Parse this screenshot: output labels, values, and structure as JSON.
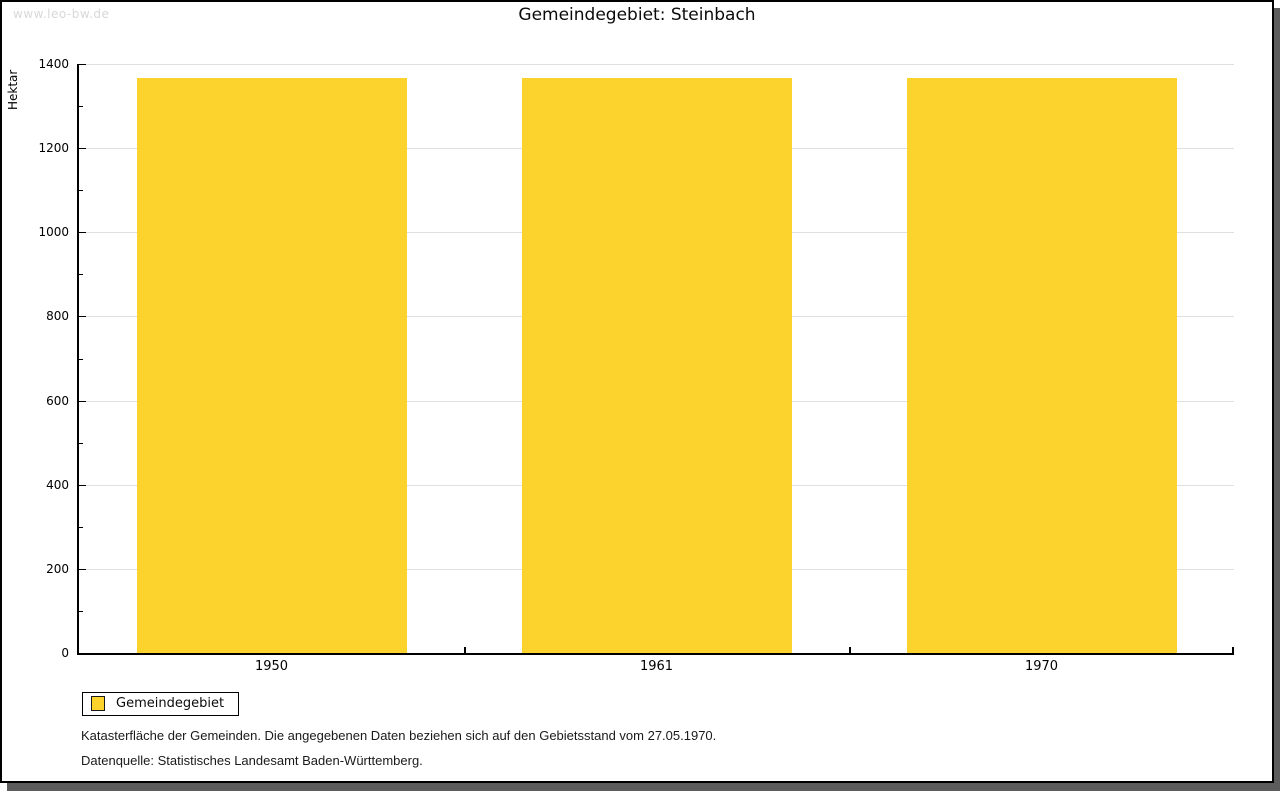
{
  "watermark": "www.leo-bw.de",
  "title": "Gemeindegebiet: Steinbach",
  "chart_data": {
    "type": "bar",
    "title": "Gemeindegebiet: Steinbach",
    "categories": [
      "1950",
      "1961",
      "1970"
    ],
    "series": [
      {
        "name": "Gemeindegebiet",
        "values": [
          1366,
          1366,
          1366
        ]
      }
    ],
    "xlabel": "",
    "ylabel": "Hektar",
    "ylim": [
      0,
      1400
    ],
    "y_major_step": 200,
    "y_minor_step": 100,
    "grid": "horizontal-major-only",
    "legend_position": "bottom-left",
    "bar_color": "#FCD32D"
  },
  "legend": {
    "label": "Gemeindegebiet"
  },
  "footer": {
    "line1": "Katasterfläche der Gemeinden. Die angegebenen Daten beziehen sich auf den Gebietsstand vom 27.05.1970.",
    "line2": "Datenquelle: Statistisches Landesamt Baden-Württemberg."
  },
  "colors": {
    "bar": "#FCD32D",
    "gridline": "#E0E0E0",
    "axis": "#000000",
    "shadow": "#5C5C5C",
    "watermark_text": "#D8D8D8"
  }
}
